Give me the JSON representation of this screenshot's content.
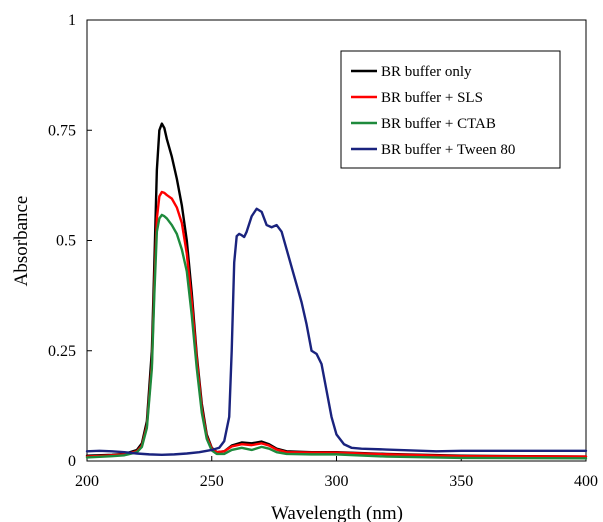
{
  "chart_data": {
    "type": "line",
    "xlabel": "Wavelength (nm)",
    "ylabel": "Absorbance",
    "xlim": [
      200,
      400
    ],
    "ylim": [
      0,
      1
    ],
    "xticks": [
      "200",
      "250",
      "300",
      "350",
      "400"
    ],
    "yticks": [
      "0",
      "0.25",
      "0.5",
      "0.75",
      "1"
    ],
    "xtick_values": [
      200,
      250,
      300,
      350,
      400
    ],
    "ytick_values": [
      0,
      0.25,
      0.5,
      0.75,
      1
    ],
    "grid": false,
    "legend_position": "top-right",
    "series": [
      {
        "name": "BR buffer only",
        "color": "#000000",
        "points": [
          [
            200,
            0.012
          ],
          [
            210,
            0.014
          ],
          [
            215,
            0.016
          ],
          [
            220,
            0.025
          ],
          [
            222,
            0.04
          ],
          [
            224,
            0.09
          ],
          [
            226,
            0.25
          ],
          [
            227,
            0.45
          ],
          [
            228,
            0.66
          ],
          [
            229,
            0.75
          ],
          [
            230,
            0.765
          ],
          [
            231,
            0.755
          ],
          [
            232,
            0.73
          ],
          [
            234,
            0.69
          ],
          [
            236,
            0.64
          ],
          [
            238,
            0.58
          ],
          [
            240,
            0.5
          ],
          [
            242,
            0.38
          ],
          [
            244,
            0.24
          ],
          [
            246,
            0.13
          ],
          [
            248,
            0.06
          ],
          [
            250,
            0.03
          ],
          [
            252,
            0.02
          ],
          [
            255,
            0.022
          ],
          [
            258,
            0.035
          ],
          [
            262,
            0.042
          ],
          [
            266,
            0.04
          ],
          [
            270,
            0.044
          ],
          [
            273,
            0.038
          ],
          [
            276,
            0.028
          ],
          [
            280,
            0.022
          ],
          [
            290,
            0.02
          ],
          [
            300,
            0.02
          ],
          [
            320,
            0.016
          ],
          [
            350,
            0.012
          ],
          [
            400,
            0.01
          ]
        ]
      },
      {
        "name": "BR buffer + SLS",
        "color": "#ff0000",
        "points": [
          [
            200,
            0.01
          ],
          [
            210,
            0.013
          ],
          [
            215,
            0.015
          ],
          [
            220,
            0.022
          ],
          [
            222,
            0.035
          ],
          [
            224,
            0.08
          ],
          [
            226,
            0.22
          ],
          [
            227,
            0.4
          ],
          [
            228,
            0.55
          ],
          [
            229,
            0.6
          ],
          [
            230,
            0.61
          ],
          [
            231,
            0.608
          ],
          [
            232,
            0.603
          ],
          [
            234,
            0.595
          ],
          [
            236,
            0.575
          ],
          [
            238,
            0.54
          ],
          [
            240,
            0.47
          ],
          [
            242,
            0.36
          ],
          [
            244,
            0.23
          ],
          [
            246,
            0.12
          ],
          [
            248,
            0.055
          ],
          [
            250,
            0.028
          ],
          [
            252,
            0.02
          ],
          [
            255,
            0.022
          ],
          [
            258,
            0.033
          ],
          [
            262,
            0.038
          ],
          [
            266,
            0.036
          ],
          [
            270,
            0.04
          ],
          [
            273,
            0.035
          ],
          [
            276,
            0.026
          ],
          [
            280,
            0.02
          ],
          [
            290,
            0.019
          ],
          [
            300,
            0.019
          ],
          [
            320,
            0.015
          ],
          [
            350,
            0.011
          ],
          [
            400,
            0.01
          ]
        ]
      },
      {
        "name": "BR buffer + CTAB",
        "color": "#1e8a3c",
        "points": [
          [
            200,
            0.008
          ],
          [
            210,
            0.011
          ],
          [
            215,
            0.013
          ],
          [
            220,
            0.02
          ],
          [
            222,
            0.032
          ],
          [
            224,
            0.075
          ],
          [
            226,
            0.21
          ],
          [
            227,
            0.38
          ],
          [
            228,
            0.52
          ],
          [
            229,
            0.55
          ],
          [
            230,
            0.558
          ],
          [
            231,
            0.555
          ],
          [
            232,
            0.55
          ],
          [
            234,
            0.535
          ],
          [
            236,
            0.515
          ],
          [
            238,
            0.48
          ],
          [
            240,
            0.43
          ],
          [
            242,
            0.33
          ],
          [
            244,
            0.21
          ],
          [
            246,
            0.11
          ],
          [
            248,
            0.05
          ],
          [
            250,
            0.024
          ],
          [
            252,
            0.016
          ],
          [
            255,
            0.016
          ],
          [
            258,
            0.025
          ],
          [
            262,
            0.03
          ],
          [
            266,
            0.025
          ],
          [
            270,
            0.032
          ],
          [
            273,
            0.028
          ],
          [
            276,
            0.02
          ],
          [
            280,
            0.016
          ],
          [
            290,
            0.015
          ],
          [
            300,
            0.015
          ],
          [
            320,
            0.01
          ],
          [
            350,
            0.007
          ],
          [
            400,
            0.006
          ]
        ]
      },
      {
        "name": "BR buffer + Tween 80",
        "color": "#1a237e",
        "points": [
          [
            200,
            0.022
          ],
          [
            205,
            0.023
          ],
          [
            210,
            0.022
          ],
          [
            215,
            0.02
          ],
          [
            220,
            0.017
          ],
          [
            225,
            0.015
          ],
          [
            230,
            0.014
          ],
          [
            235,
            0.015
          ],
          [
            240,
            0.017
          ],
          [
            245,
            0.02
          ],
          [
            250,
            0.025
          ],
          [
            253,
            0.03
          ],
          [
            255,
            0.045
          ],
          [
            257,
            0.1
          ],
          [
            258,
            0.25
          ],
          [
            259,
            0.45
          ],
          [
            260,
            0.51
          ],
          [
            261,
            0.515
          ],
          [
            262,
            0.512
          ],
          [
            263,
            0.508
          ],
          [
            264,
            0.52
          ],
          [
            266,
            0.555
          ],
          [
            268,
            0.572
          ],
          [
            270,
            0.565
          ],
          [
            272,
            0.535
          ],
          [
            274,
            0.53
          ],
          [
            276,
            0.535
          ],
          [
            278,
            0.52
          ],
          [
            280,
            0.48
          ],
          [
            283,
            0.42
          ],
          [
            286,
            0.36
          ],
          [
            288,
            0.31
          ],
          [
            290,
            0.25
          ],
          [
            292,
            0.243
          ],
          [
            294,
            0.22
          ],
          [
            296,
            0.16
          ],
          [
            298,
            0.1
          ],
          [
            300,
            0.06
          ],
          [
            303,
            0.038
          ],
          [
            306,
            0.03
          ],
          [
            310,
            0.028
          ],
          [
            320,
            0.026
          ],
          [
            330,
            0.024
          ],
          [
            340,
            0.022
          ],
          [
            350,
            0.023
          ],
          [
            370,
            0.023
          ],
          [
            400,
            0.023
          ]
        ]
      }
    ]
  }
}
